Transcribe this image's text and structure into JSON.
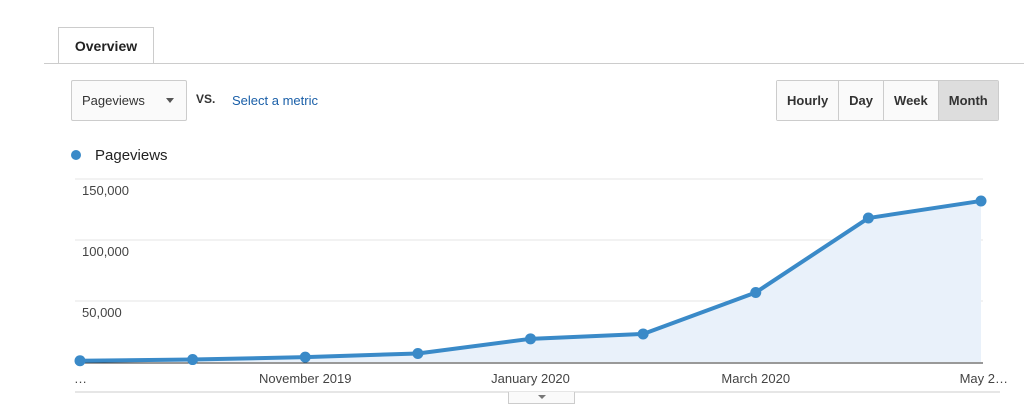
{
  "tab": "Overview",
  "controls": {
    "metric": "Pageviews",
    "vs": "VS.",
    "link": "Select a metric",
    "buttons": [
      "Hourly",
      "Day",
      "Week",
      "Month"
    ],
    "active_button": "Month"
  },
  "chart_data": {
    "type": "line",
    "categories": [
      "…",
      null,
      "November 2019",
      null,
      "January 2020",
      null,
      "March 2020",
      null,
      "May 2…"
    ],
    "series": [
      {
        "name": "Pageviews",
        "color": "#3a8ac8",
        "values": [
          1000,
          2000,
          4000,
          7000,
          19000,
          23000,
          57000,
          118000,
          132000
        ]
      }
    ],
    "ylim": [
      0,
      150000
    ],
    "yticks": [
      {
        "value": 50000,
        "label": "50,000"
      },
      {
        "value": 100000,
        "label": "100,000"
      },
      {
        "value": 150000,
        "label": "150,000"
      }
    ],
    "grid": true,
    "area": true
  }
}
